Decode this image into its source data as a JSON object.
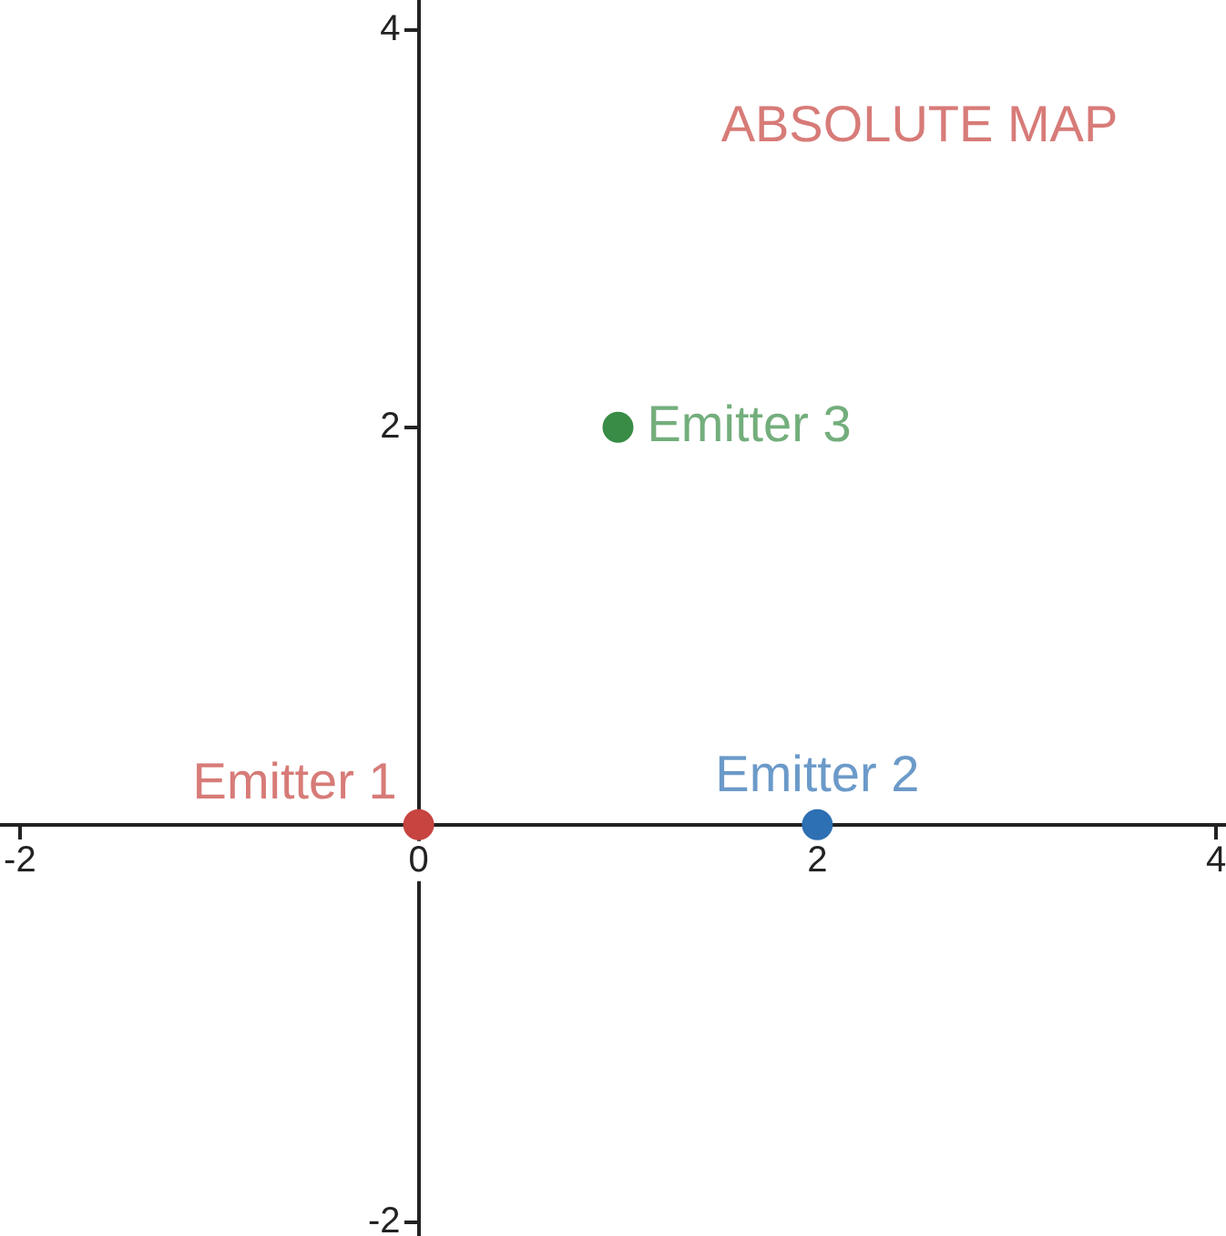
{
  "chart_data": {
    "type": "scatter",
    "title": "ABSOLUTE MAP",
    "xlim": [
      -2.1,
      4.05
    ],
    "ylim": [
      -2.07,
      4.15
    ],
    "xticks": [
      -2,
      0,
      2,
      4
    ],
    "yticks": [
      -2,
      2,
      4
    ],
    "grid": false,
    "legend": false,
    "marker": "circle",
    "series": [
      {
        "name": "Emitter 1",
        "color": "#c74440",
        "x": [
          0
        ],
        "values": [
          0
        ]
      },
      {
        "name": "Emitter 2",
        "color": "#2d70b3",
        "x": [
          2
        ],
        "values": [
          0
        ]
      },
      {
        "name": "Emitter 3",
        "color": "#388c46",
        "x": [
          1
        ],
        "values": [
          2
        ]
      }
    ]
  }
}
